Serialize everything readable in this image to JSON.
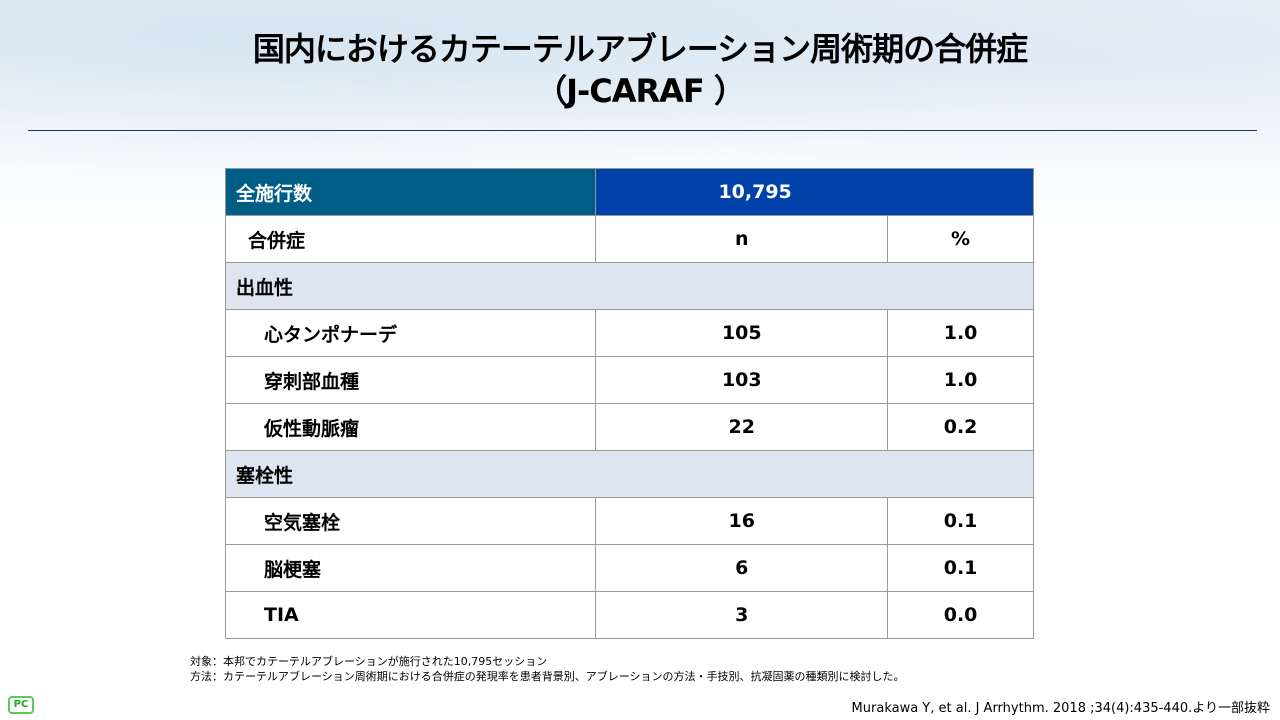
{
  "title": {
    "line1": "国内におけるカテーテルアブレーション周術期の合併症",
    "line2": "（J-CARAF ）"
  },
  "table": {
    "total_label": "全施行数",
    "total_value": "10,795",
    "col_label": "合併症",
    "col_n": "n",
    "col_pct": "%",
    "sections": [
      {
        "name": "出血性",
        "rows": [
          {
            "label": "心タンポナーデ",
            "n": "105",
            "pct": "1.0"
          },
          {
            "label": "穿刺部血種",
            "n": "103",
            "pct": "1.0"
          },
          {
            "label": "仮性動脈瘤",
            "n": "22",
            "pct": "0.2"
          }
        ]
      },
      {
        "name": "塞栓性",
        "rows": [
          {
            "label": "空気塞栓",
            "n": "16",
            "pct": "0.1"
          },
          {
            "label": "脳梗塞",
            "n": "6",
            "pct": "0.1"
          },
          {
            "label": "TIA",
            "n": "3",
            "pct": "0.0"
          }
        ]
      }
    ]
  },
  "notes": {
    "subject": "対象：本邦でカテーテルアブレーションが施行された10,795セッション",
    "method": "方法：カテーテルアブレーション周術期における合併症の発現率を患者背景別、アブレーションの方法・手技別、抗凝固薬の種類別に検討した。"
  },
  "citation": "Murakawa Y, et al. J Arrhythm. 2018 ;34(4):435-440.より一部抜粋",
  "logo": "PC"
}
